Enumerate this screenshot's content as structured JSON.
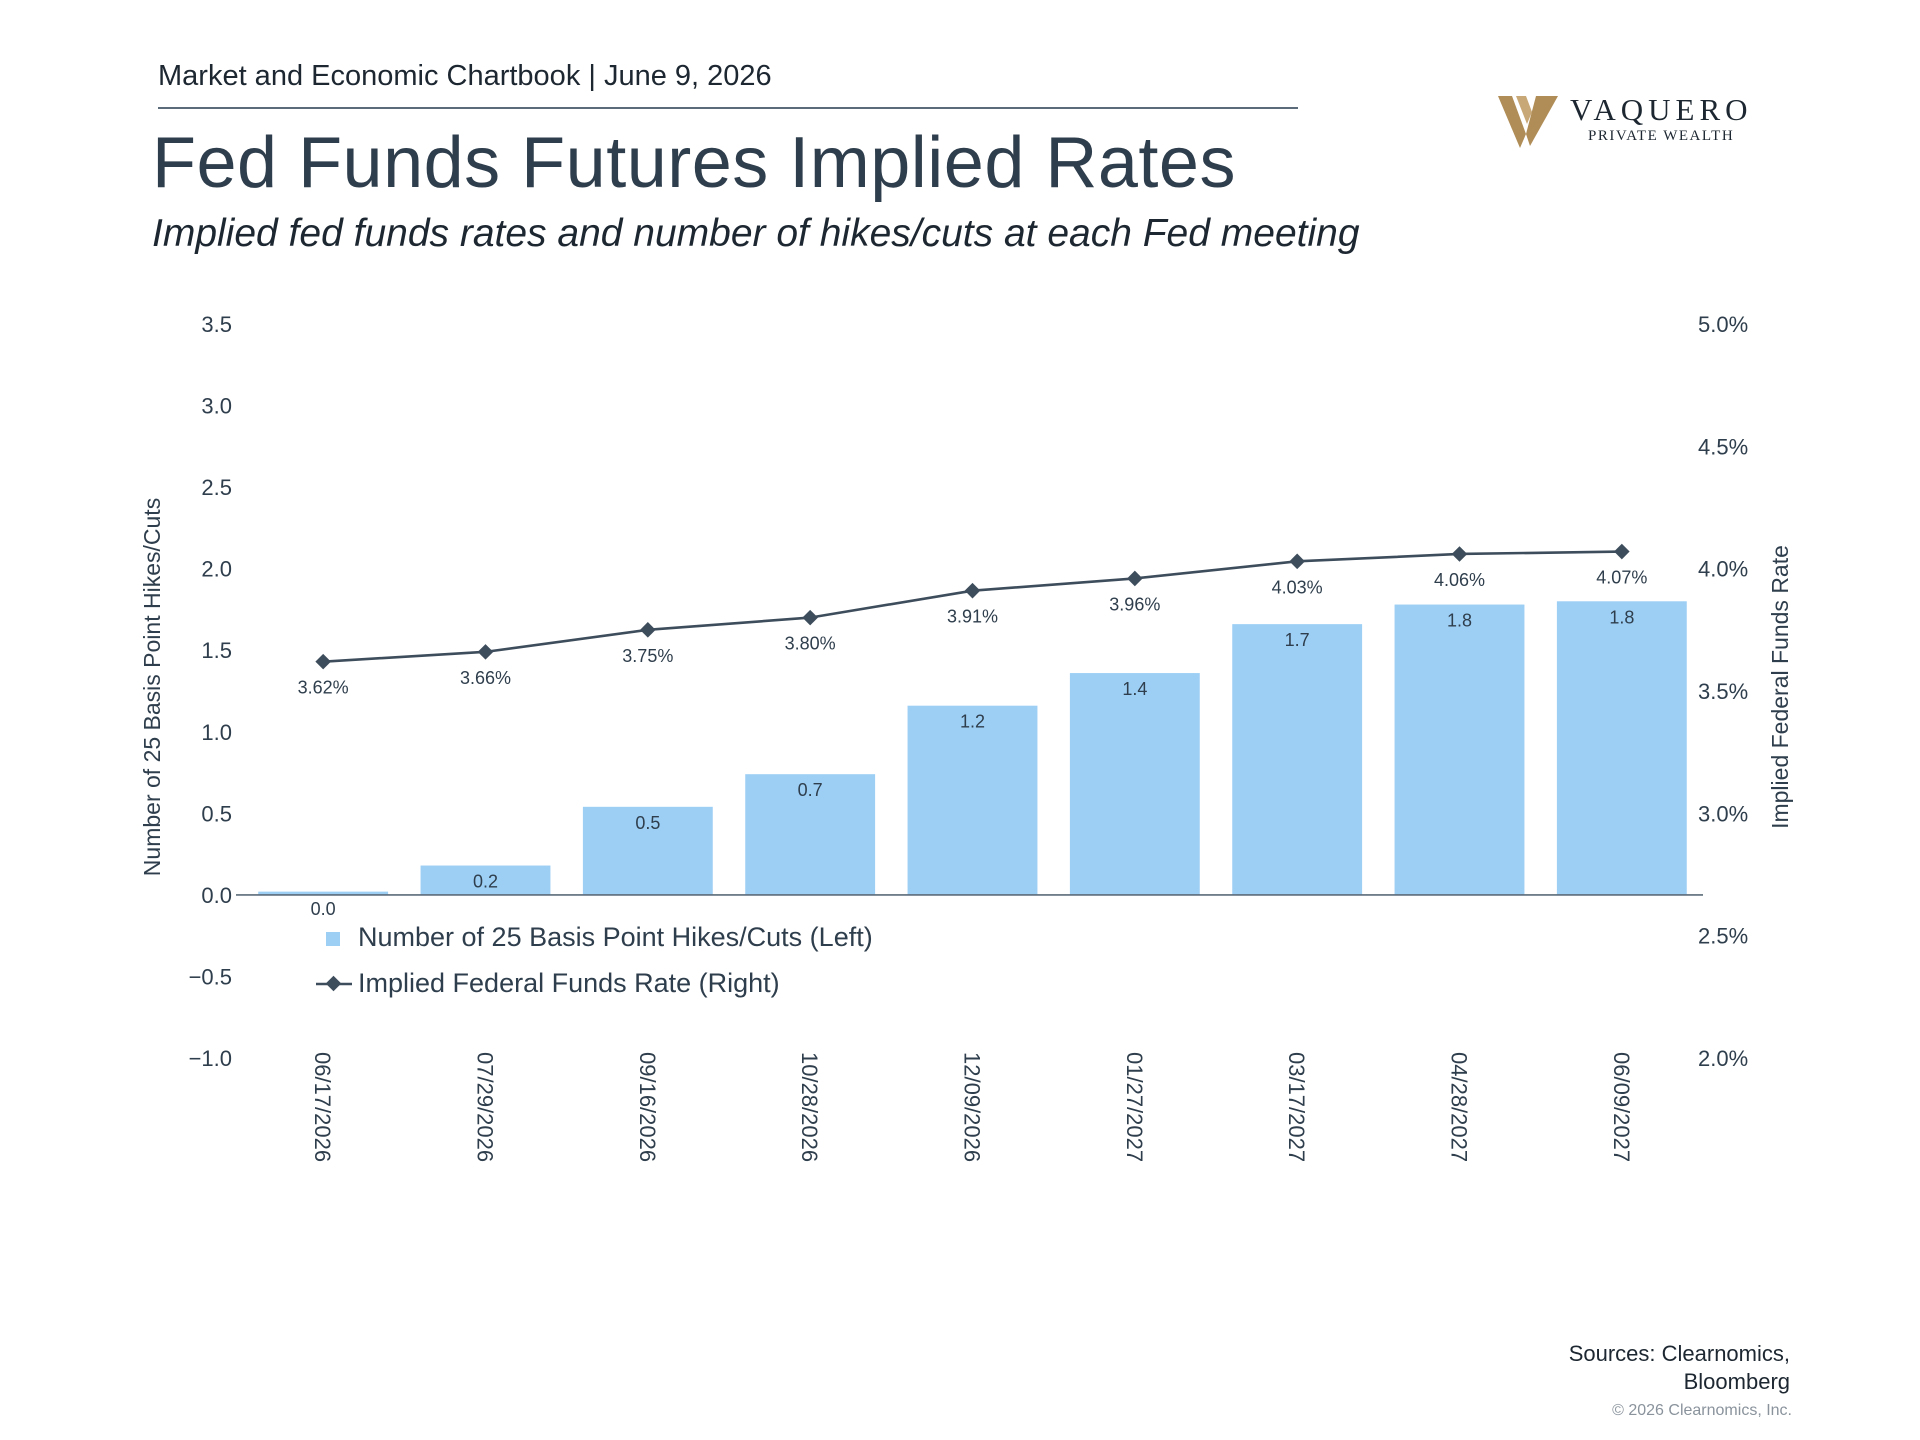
{
  "header": {
    "chartbook": "Market and Economic Chartbook | June 9, 2026",
    "title": "Fed Funds Futures Implied Rates",
    "subtitle": "Implied fed funds rates and number of hikes/cuts at each Fed meeting"
  },
  "logo": {
    "word": "VAQUERO",
    "sub": "PRIVATE WEALTH",
    "color": "#b08d57"
  },
  "chart_data": {
    "type": "bar",
    "categories": [
      "06/17/2026",
      "07/29/2026",
      "09/16/2026",
      "10/28/2026",
      "12/09/2026",
      "01/27/2027",
      "03/17/2027",
      "04/28/2027",
      "06/09/2027"
    ],
    "series": [
      {
        "name": "Number of 25 Basis Point Hikes/Cuts (Left)",
        "type": "bar",
        "axis": "left",
        "color": "#9dcff5",
        "values": [
          0.02,
          0.18,
          0.54,
          0.74,
          1.16,
          1.36,
          1.66,
          1.78,
          1.8
        ],
        "labels": [
          "0.0",
          "0.2",
          "0.5",
          "0.7",
          "1.2",
          "1.4",
          "1.7",
          "1.8",
          "1.8"
        ]
      },
      {
        "name": "Implied Federal Funds Rate (Right)",
        "type": "line",
        "axis": "right",
        "color": "#3e4d5c",
        "values": [
          3.62,
          3.66,
          3.75,
          3.8,
          3.91,
          3.96,
          4.03,
          4.06,
          4.07
        ],
        "labels": [
          "3.62%",
          "3.66%",
          "3.75%",
          "3.80%",
          "3.91%",
          "3.96%",
          "4.03%",
          "4.06%",
          "4.07%"
        ]
      }
    ],
    "ylabel_left": "Number of 25 Basis Point Hikes/Cuts",
    "ylabel_right": "Implied Federal Funds Rate",
    "ylim_left": [
      -1.0,
      3.5
    ],
    "ylim_right": [
      2.0,
      5.0
    ],
    "yticks_left": [
      "3.5",
      "3.0",
      "2.5",
      "2.0",
      "1.5",
      "1.0",
      "0.5",
      "0.0",
      "−0.5",
      "−1.0"
    ],
    "yticks_left_values": [
      3.5,
      3.0,
      2.5,
      2.0,
      1.5,
      1.0,
      0.5,
      0.0,
      -0.5,
      -1.0
    ],
    "yticks_right": [
      "5.0%",
      "4.5%",
      "4.0%",
      "3.5%",
      "3.0%",
      "2.5%",
      "2.0%"
    ],
    "yticks_right_values": [
      5.0,
      4.5,
      4.0,
      3.5,
      3.0,
      2.5,
      2.0
    ],
    "grid": false,
    "legend_position": "bottom-left"
  },
  "footer": {
    "sources_line1": "Sources: Clearnomics,",
    "sources_line2": "Bloomberg",
    "copyright": "© 2026 Clearnomics, Inc."
  }
}
